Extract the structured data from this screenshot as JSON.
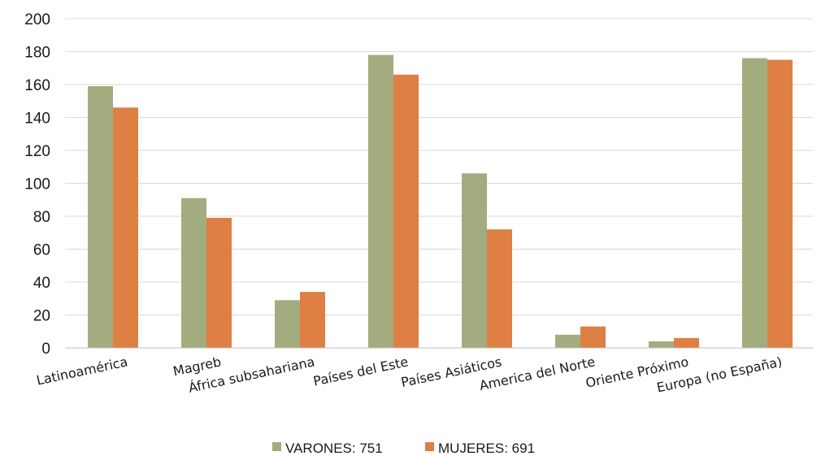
{
  "chart_data": {
    "type": "bar",
    "categories": [
      "Latinoamérica",
      "Magreb",
      "África subsahariana",
      "Países del Este",
      "Países Asiáticos",
      "America del Norte",
      "Oriente Próximo",
      "Europa (no España)"
    ],
    "series": [
      {
        "name": "VARONES: 751",
        "color": "#a3ac7e",
        "values": [
          159,
          91,
          29,
          178,
          106,
          8,
          4,
          176
        ]
      },
      {
        "name": "MUJERES: 691",
        "color": "#de7f43",
        "values": [
          146,
          79,
          34,
          166,
          72,
          13,
          6,
          175
        ]
      }
    ],
    "ylim": [
      0,
      200
    ],
    "yticks": [
      "0",
      "20",
      "40",
      "60",
      "80",
      "100",
      "120",
      "140",
      "160",
      "180",
      "200"
    ],
    "grid": true,
    "legend": "bottom",
    "title": "",
    "xlabel": "",
    "ylabel": ""
  }
}
